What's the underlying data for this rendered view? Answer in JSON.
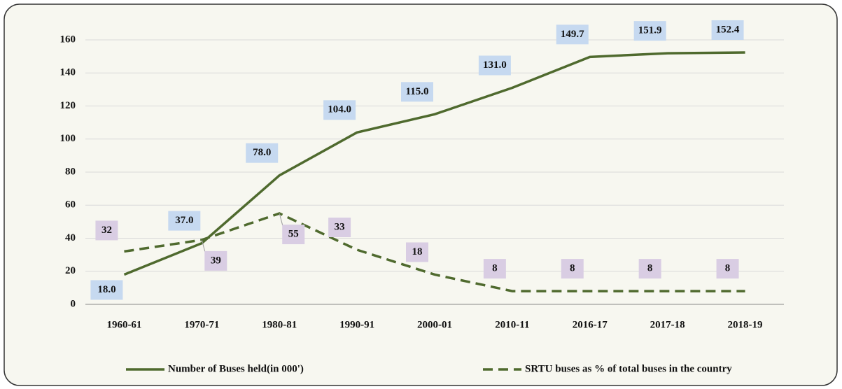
{
  "chart_data": {
    "type": "line",
    "categories": [
      "1960-61",
      "1970-71",
      "1980-81",
      "1990-91",
      "2000-01",
      "2010-11",
      "2016-17",
      "2017-18",
      "2018-19"
    ],
    "series": [
      {
        "name": "Number of Buses held(in 000')",
        "color": "#4f6a2e",
        "dash": false,
        "label_bg": "#c6d9f0",
        "values": [
          18,
          37,
          78,
          104,
          115,
          131,
          149.7,
          151.9,
          152.4
        ],
        "value_labels": [
          "18.0",
          "37.0",
          "78.0",
          "104.0",
          "115.0",
          "131.0",
          "149.7",
          "151.9",
          "152.4"
        ]
      },
      {
        "name": "SRTU buses as % of total buses in the country",
        "color": "#4f6a2e",
        "dash": true,
        "label_bg": "#d9cde3",
        "values": [
          32,
          39,
          55,
          33,
          18,
          8,
          8,
          8,
          8
        ]
      }
    ],
    "ylim": [
      0,
      160
    ],
    "yticks": [
      0,
      20,
      40,
      60,
      80,
      100,
      120,
      140,
      160
    ],
    "grid": true,
    "legend": "bottom"
  }
}
